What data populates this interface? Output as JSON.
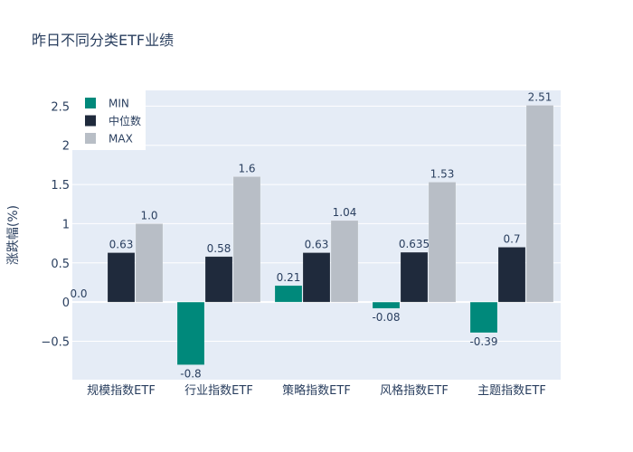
{
  "chart_data": {
    "type": "bar",
    "title": "昨日不同分类ETF业绩",
    "xlabel": "",
    "ylabel": "涨跌幅(%)",
    "ylim": [
      -0.99,
      2.7
    ],
    "yticks": [
      -0.5,
      0,
      0.5,
      1,
      1.5,
      2,
      2.5
    ],
    "ytick_labels": [
      "−0.5",
      "0",
      "0.5",
      "1",
      "1.5",
      "2",
      "2.5"
    ],
    "grid": true,
    "legend_position": "top-left",
    "categories": [
      "规模指数ETF",
      "行业指数ETF",
      "策略指数ETF",
      "风格指数ETF",
      "主题指数ETF"
    ],
    "series": [
      {
        "name": "MIN",
        "color": "#00897b",
        "values": [
          0.0,
          -0.8,
          0.21,
          -0.08,
          -0.39
        ],
        "labels": [
          "0.0",
          "-0.8",
          "0.21",
          "-0.08",
          "-0.39"
        ]
      },
      {
        "name": "中位数",
        "color": "#1f2a3c",
        "values": [
          0.63,
          0.58,
          0.63,
          0.635,
          0.7
        ],
        "labels": [
          "0.63",
          "0.58",
          "0.63",
          "0.635",
          "0.7"
        ]
      },
      {
        "name": "MAX",
        "color": "#b8bec6",
        "values": [
          1.0,
          1.6,
          1.04,
          1.53,
          2.51
        ],
        "labels": [
          "1.0",
          "1.6",
          "1.04",
          "1.53",
          "2.51"
        ]
      }
    ]
  }
}
